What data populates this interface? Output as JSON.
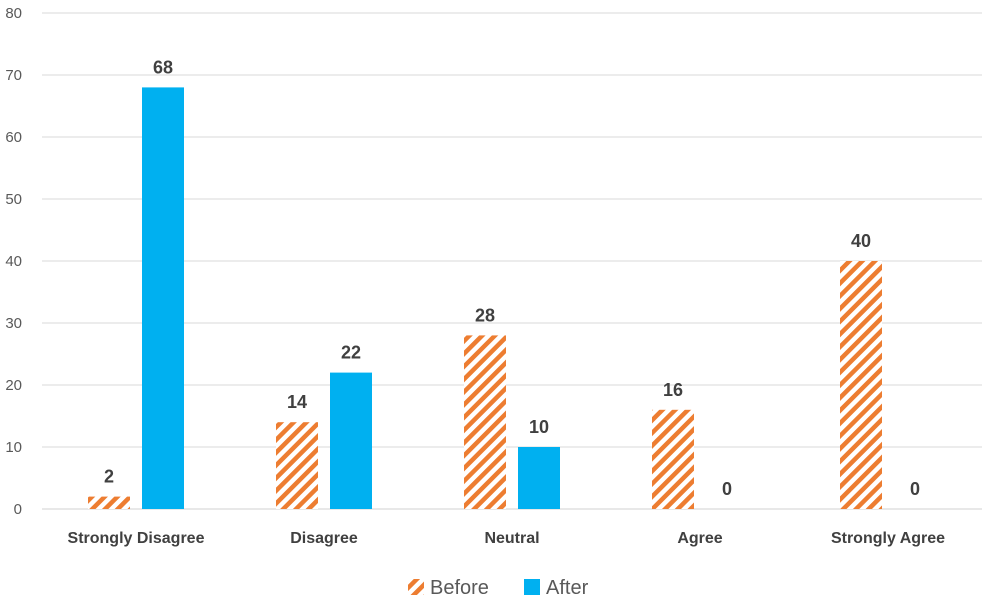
{
  "chart_data": {
    "type": "bar",
    "categories": [
      "Strongly Disagree",
      "Disagree",
      "Neutral",
      "Agree",
      "Strongly Agree"
    ],
    "series": [
      {
        "name": "Before",
        "values": [
          2,
          14,
          28,
          16,
          40
        ],
        "color": "#ED7D31",
        "pattern": "diagonal-hatch"
      },
      {
        "name": "After",
        "values": [
          68,
          22,
          10,
          0,
          0
        ],
        "color": "#00B0F0",
        "pattern": "solid"
      }
    ],
    "ylim": [
      0,
      80
    ],
    "yticks": [
      0,
      10,
      20,
      30,
      40,
      50,
      60,
      70,
      80
    ],
    "grid": true,
    "legend_position": "bottom",
    "data_labels": true
  }
}
